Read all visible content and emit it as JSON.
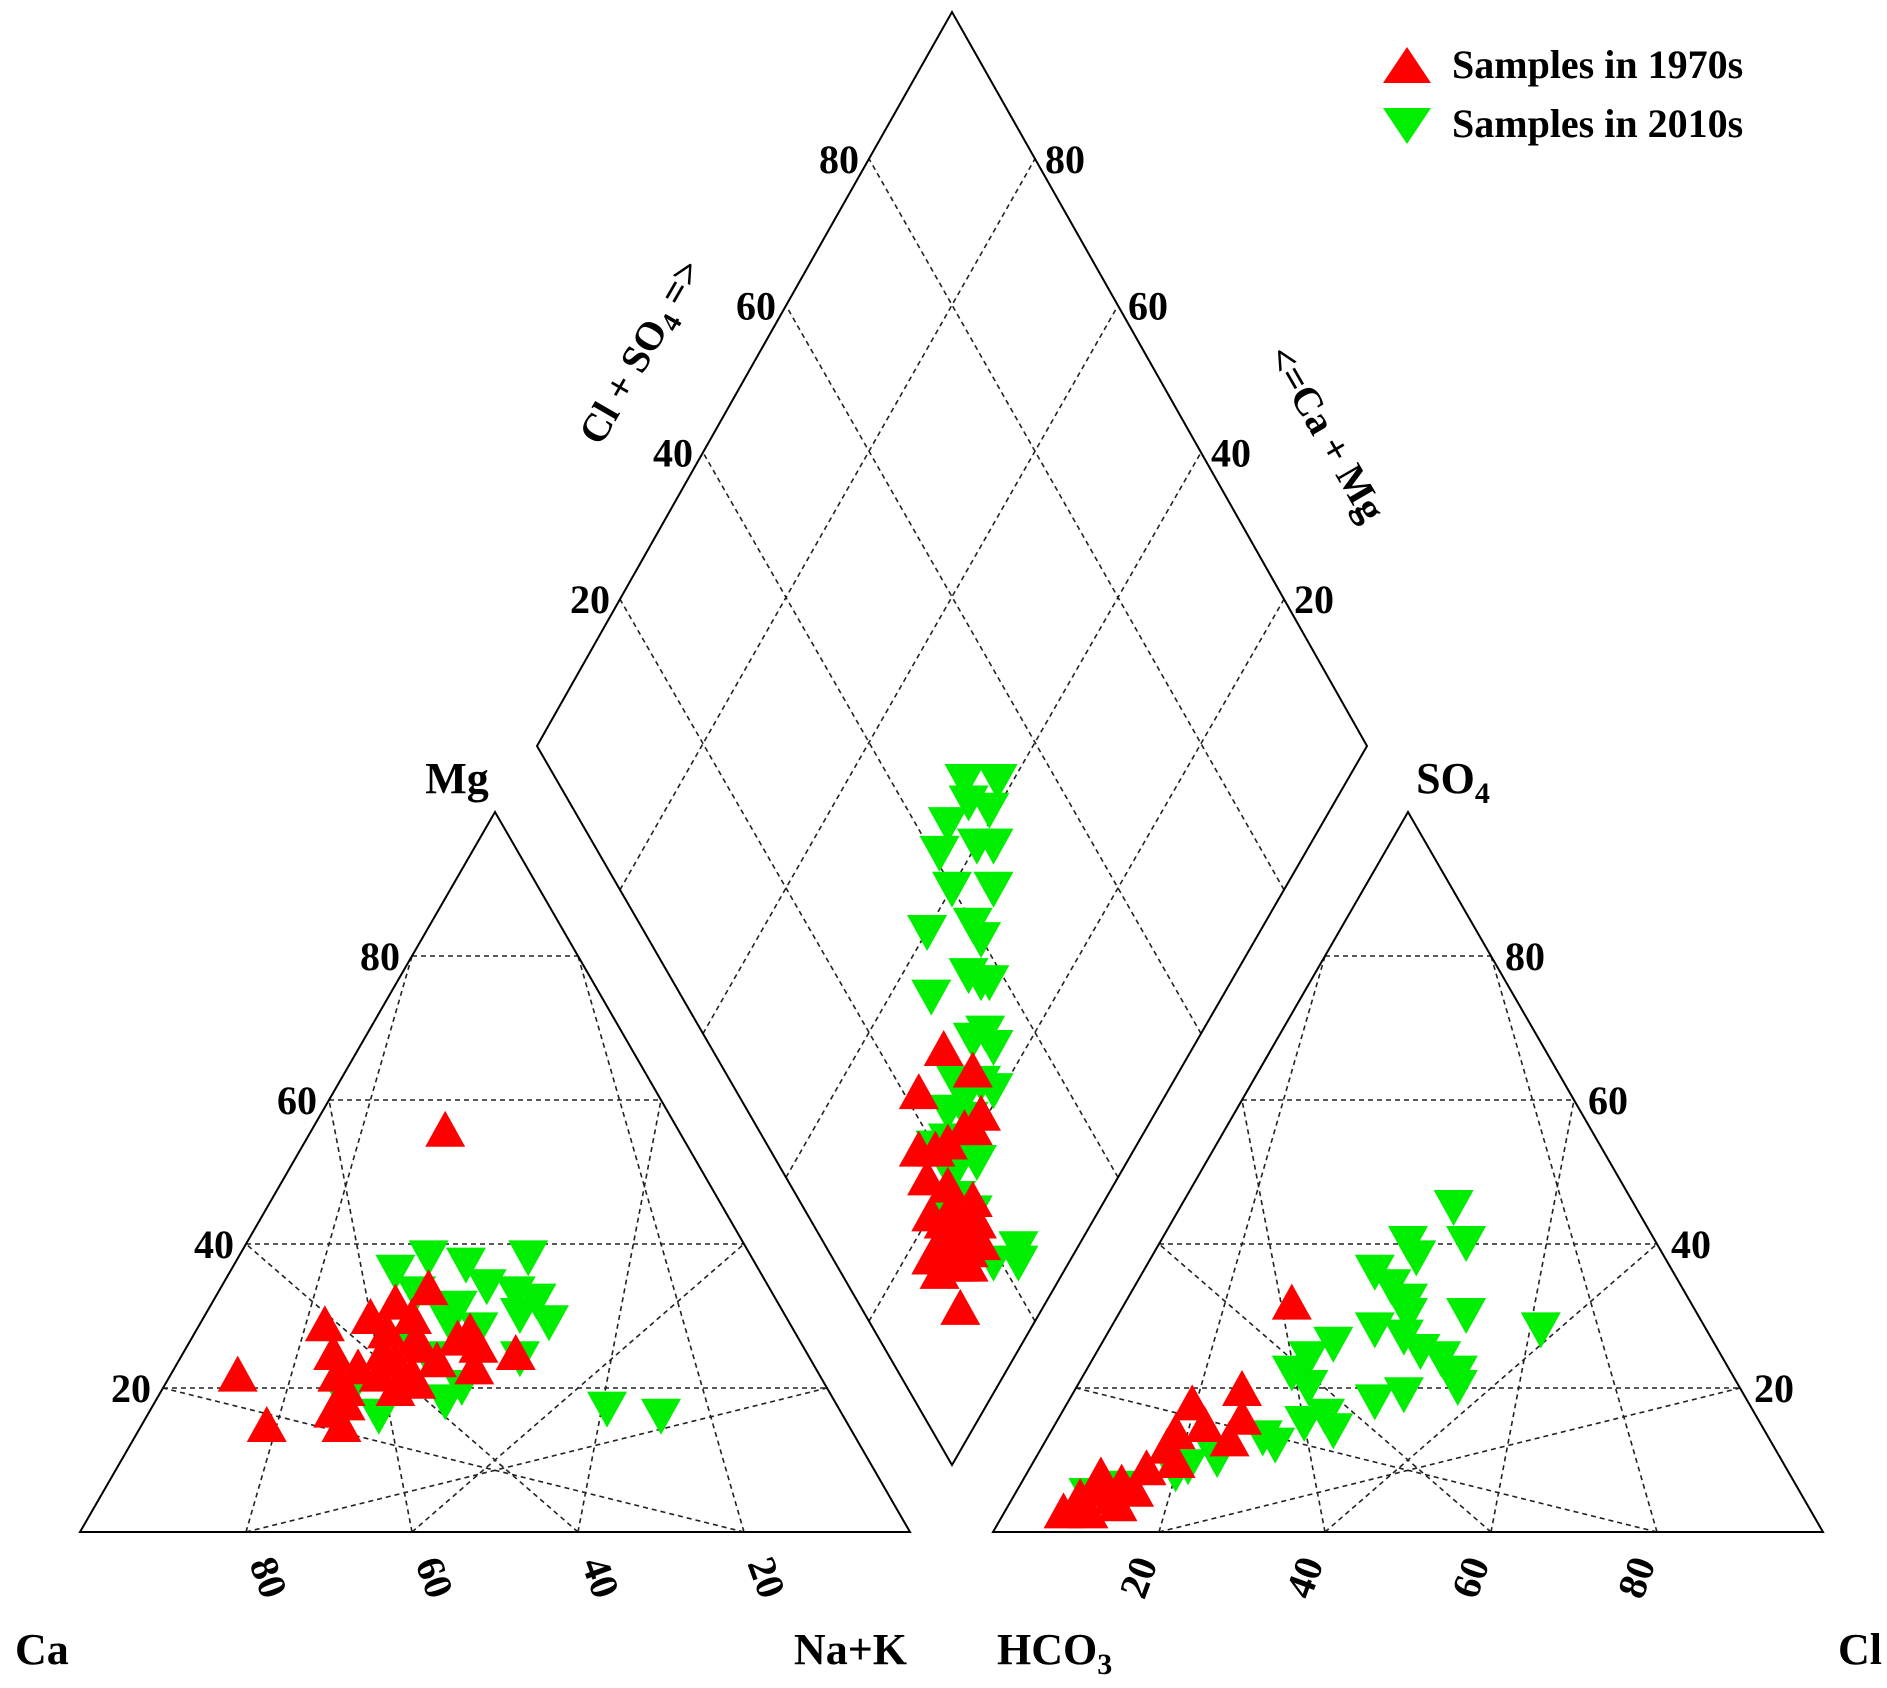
{
  "chart_data": {
    "type": "scatter",
    "subtype": "piper-diagram",
    "legend": {
      "position": "top-right",
      "entries": [
        {
          "name": "Samples in 1970s",
          "marker": "triangle-up",
          "color": "#ff0000"
        },
        {
          "name": "Samples in 2010s",
          "marker": "triangle-down",
          "color": "#00ee00"
        }
      ]
    },
    "ticks": [
      "20",
      "40",
      "60",
      "80"
    ],
    "cation_triangle": {
      "corner_labels": {
        "top": "Mg",
        "bottom_left": "Ca",
        "bottom_right": "Na+K"
      },
      "axes": [
        "Mg (%)",
        "Na+K (%)",
        "Ca (%)"
      ],
      "series": [
        {
          "name": "Samples in 1970s",
          "points": [
            [
              56,
              16
            ],
            [
              28,
              23
            ],
            [
              30,
              20
            ],
            [
              25,
              24
            ],
            [
              24,
              26
            ],
            [
              27,
              27
            ],
            [
              22,
              29
            ],
            [
              28,
              33
            ],
            [
              26,
              35
            ],
            [
              24,
              31
            ],
            [
              20,
              28
            ],
            [
              22,
              20
            ],
            [
              15,
              24
            ],
            [
              17,
              22
            ],
            [
              20,
              22
            ],
            [
              18,
              23
            ],
            [
              26,
              28
            ],
            [
              23,
              36
            ],
            [
              22,
              8
            ],
            [
              15,
              15
            ],
            [
              25,
              18
            ],
            [
              32,
              22
            ],
            [
              34,
              25
            ],
            [
              30,
              25
            ],
            [
              27,
              32
            ],
            [
              25,
              40
            ],
            [
              22,
              25
            ],
            [
              21,
              30
            ],
            [
              29,
              15
            ],
            [
              23,
              22
            ]
          ]
        },
        {
          "name": "Samples in 2010s",
          "points": [
            [
              38,
              23
            ],
            [
              37,
              28
            ],
            [
              38,
              35
            ],
            [
              34,
              32
            ],
            [
              33,
              36
            ],
            [
              32,
              39
            ],
            [
              31,
              30
            ],
            [
              29,
              30
            ],
            [
              28,
              34
            ],
            [
              29,
              42
            ],
            [
              33,
              24
            ],
            [
              36,
              20
            ],
            [
              26,
              26
            ],
            [
              24,
              30
            ],
            [
              18,
              23
            ],
            [
              16,
              28
            ],
            [
              20,
              36
            ],
            [
              17,
              55
            ],
            [
              16,
              62
            ],
            [
              30,
              38
            ],
            [
              24,
              41
            ],
            [
              18,
              35
            ]
          ]
        }
      ]
    },
    "anion_triangle": {
      "corner_labels": {
        "top": "SO4",
        "bottom_left": "HCO3",
        "bottom_right": "Cl"
      },
      "axes": [
        "SO4 (%)",
        "Cl (%)",
        "HCO3 (%)"
      ],
      "series": [
        {
          "name": "Samples in 1970s",
          "points": [
            [
              4,
              9
            ],
            [
              3,
              10
            ],
            [
              5,
              8
            ],
            [
              6,
              10
            ],
            [
              7,
              12
            ],
            [
              4,
              13
            ],
            [
              5,
              12
            ],
            [
              6,
              14
            ],
            [
              3,
              7
            ],
            [
              8,
              9
            ],
            [
              9,
              14
            ],
            [
              12,
              15
            ],
            [
              15,
              18
            ],
            [
              14,
              15
            ],
            [
              18,
              15
            ],
            [
              16,
              22
            ],
            [
              20,
              20
            ],
            [
              32,
              20
            ],
            [
              10,
              17
            ],
            [
              13,
              22
            ]
          ]
        },
        {
          "name": "Samples in 2010s",
          "points": [
            [
              45,
              33
            ],
            [
              40,
              30
            ],
            [
              38,
              32
            ],
            [
              36,
              28
            ],
            [
              34,
              31
            ],
            [
              32,
              34
            ],
            [
              30,
              35
            ],
            [
              28,
              32
            ],
            [
              27,
              36
            ],
            [
              25,
              39
            ],
            [
              30,
              42
            ],
            [
              24,
              42
            ],
            [
              22,
              45
            ],
            [
              20,
              46
            ],
            [
              19,
              40
            ],
            [
              18,
              37
            ],
            [
              16,
              32
            ],
            [
              15,
              30
            ],
            [
              13,
              26
            ],
            [
              12,
              28
            ],
            [
              10,
              22
            ],
            [
              9,
              19
            ],
            [
              8,
              18
            ],
            [
              6,
              13
            ],
            [
              5,
              9
            ],
            [
              26,
              28
            ],
            [
              24,
              26
            ],
            [
              22,
              25
            ],
            [
              20,
              28
            ],
            [
              14,
              34
            ],
            [
              28,
              52
            ],
            [
              40,
              37
            ]
          ]
        }
      ]
    },
    "diamond": {
      "axis_labels": {
        "left": "Cl + SO4 =>",
        "right": "<=Ca + Mg"
      },
      "series": [
        {
          "name": "Samples in 1970s",
          "points": [
            [
              15,
              16
            ],
            [
              15,
              18
            ],
            [
              16,
              17
            ],
            [
              17,
              14
            ],
            [
              14,
              17
            ],
            [
              16,
              14
            ],
            [
              14,
              14
            ],
            [
              13,
              17
            ],
            [
              15,
              12
            ],
            [
              17,
              12
            ],
            [
              18,
              16
            ],
            [
              12,
              19
            ],
            [
              20,
              15
            ],
            [
              18,
              18
            ],
            [
              15,
              20
            ],
            [
              20,
              19
            ],
            [
              23,
              17
            ],
            [
              24,
              20
            ],
            [
              22,
              25
            ],
            [
              23,
              22
            ],
            [
              21,
              26
            ],
            [
              30,
              22
            ],
            [
              30,
              28
            ],
            [
              25,
              30
            ],
            [
              13,
              15
            ],
            [
              16,
              21
            ],
            [
              14,
              20
            ],
            [
              26,
              18
            ],
            [
              10,
              12
            ],
            [
              21,
              28
            ],
            [
              12,
              16
            ]
          ]
        },
        {
          "name": "Samples in 2010s",
          "points": [
            [
              42,
              53
            ],
            [
              44,
              48
            ],
            [
              41,
              50
            ],
            [
              46,
              49
            ],
            [
              40,
              46
            ],
            [
              45,
              44
            ],
            [
              38,
              48
            ],
            [
              44,
              41
            ],
            [
              40,
              40
            ],
            [
              35,
              45
            ],
            [
              33,
              40
            ],
            [
              35,
              40
            ],
            [
              32,
              36
            ],
            [
              30,
              37
            ],
            [
              29,
              38
            ],
            [
              27,
              32
            ],
            [
              24,
              34
            ],
            [
              26,
              34
            ],
            [
              23,
              30
            ],
            [
              21,
              31
            ],
            [
              24,
              28
            ],
            [
              26,
              27
            ],
            [
              25,
              24
            ],
            [
              21,
              24
            ],
            [
              23,
              22
            ],
            [
              20,
              21
            ],
            [
              20,
              20
            ],
            [
              18,
              19
            ],
            [
              17,
              17
            ],
            [
              40,
              34
            ],
            [
              15,
              20
            ],
            [
              24,
              20
            ],
            [
              9,
              19
            ],
            [
              6,
              22
            ],
            [
              7,
              23
            ],
            [
              35,
              30
            ],
            [
              18,
              24
            ],
            [
              22,
              26
            ]
          ]
        }
      ]
    }
  }
}
